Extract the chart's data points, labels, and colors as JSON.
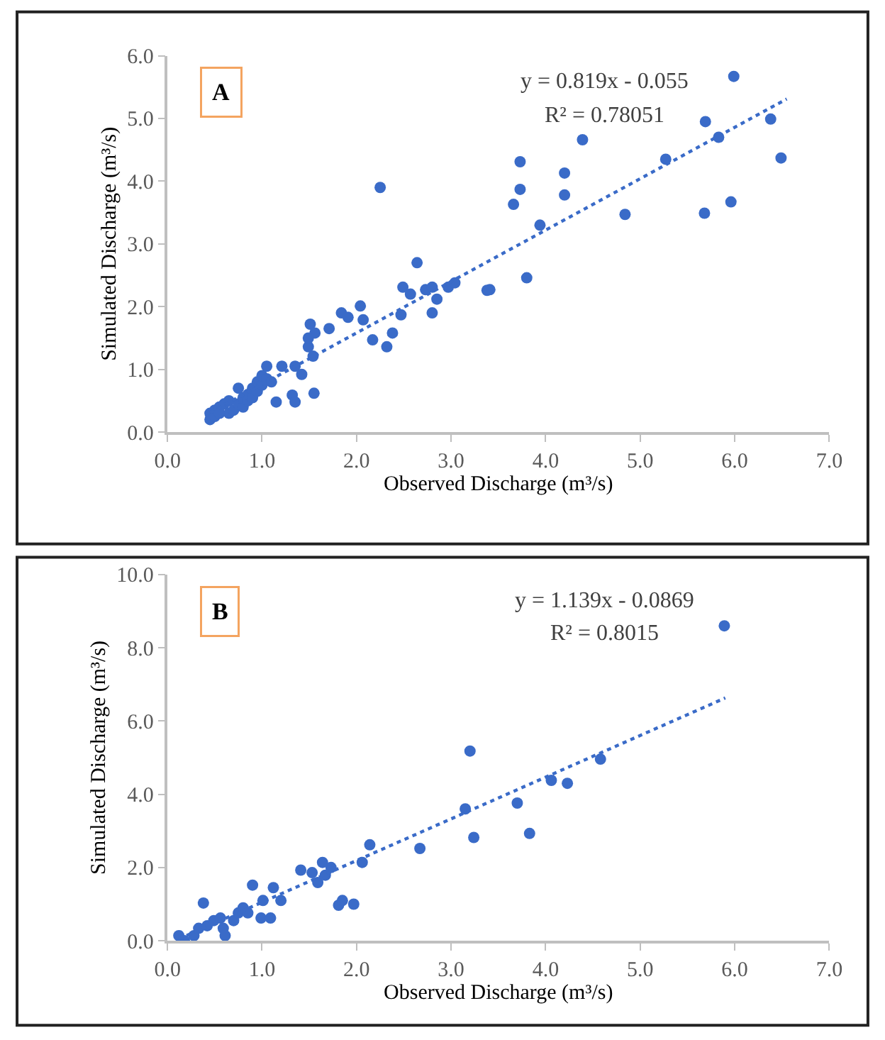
{
  "chart_data": [
    {
      "type": "scatter",
      "xlabel": "Observed Discharge (m³/s)",
      "ylabel": "Simulated Discharge (m³/s)",
      "annotations": [
        "A",
        "y = 0.819x - 0.055",
        "R² = 0.78051"
      ],
      "xlim": [
        0,
        7
      ],
      "ylim": [
        0,
        6
      ],
      "xticks": [
        {
          "value": 0,
          "label": "0.0"
        },
        {
          "value": 1,
          "label": "1.0"
        },
        {
          "value": 2,
          "label": "2.0"
        },
        {
          "value": 3,
          "label": "3.0"
        },
        {
          "value": 4,
          "label": "4.0"
        },
        {
          "value": 5,
          "label": "5.0"
        },
        {
          "value": 6,
          "label": "6.0"
        },
        {
          "value": 7,
          "label": "7.0"
        }
      ],
      "yticks": [
        {
          "value": 0,
          "label": "0.0"
        },
        {
          "value": 1,
          "label": "1.0"
        },
        {
          "value": 2,
          "label": "2.0"
        },
        {
          "value": 3,
          "label": "3.0"
        },
        {
          "value": 4,
          "label": "4.0"
        },
        {
          "value": 5,
          "label": "5.0"
        },
        {
          "value": 6,
          "label": "6.0"
        }
      ],
      "grid": false,
      "marker": "circle",
      "series": [
        {
          "color": "#3a6bc8",
          "x": [
            0.45,
            0.45,
            0.5,
            0.5,
            0.55,
            0.55,
            0.6,
            0.65,
            0.65,
            0.7,
            0.75,
            0.75,
            0.8,
            0.8,
            0.85,
            0.85,
            0.9,
            0.9,
            0.95,
            0.95,
            1.0,
            1.0,
            1.05,
            1.05,
            1.1,
            1.15,
            1.21,
            1.35,
            1.32,
            1.35,
            1.42,
            1.55,
            1.49,
            1.51,
            1.56,
            1.54,
            1.49,
            1.71,
            1.84,
            1.91,
            2.04,
            2.07,
            2.17,
            2.25,
            2.32,
            2.38,
            2.47,
            2.49,
            2.57,
            2.64,
            2.73,
            2.8,
            2.8,
            2.85,
            2.97,
            3.04,
            3.41,
            3.38,
            3.66,
            3.73,
            3.73,
            3.8,
            3.94,
            4.2,
            4.2,
            4.39,
            4.84,
            5.27,
            5.68,
            5.69,
            5.83,
            5.96,
            5.99,
            6.38,
            6.49
          ],
          "values": [
            0.3,
            0.2,
            0.35,
            0.25,
            0.4,
            0.3,
            0.45,
            0.3,
            0.5,
            0.35,
            0.45,
            0.7,
            0.4,
            0.55,
            0.5,
            0.6,
            0.55,
            0.7,
            0.65,
            0.8,
            0.75,
            0.9,
            1.05,
            0.85,
            0.8,
            0.48,
            1.05,
            1.05,
            0.59,
            0.48,
            0.92,
            0.62,
            1.36,
            1.72,
            1.58,
            1.21,
            1.5,
            1.65,
            1.9,
            1.83,
            2.01,
            1.79,
            1.47,
            3.9,
            1.36,
            1.58,
            1.87,
            2.31,
            2.2,
            2.7,
            2.27,
            2.31,
            1.9,
            2.12,
            2.31,
            2.38,
            2.27,
            2.26,
            3.63,
            3.87,
            4.31,
            2.46,
            3.3,
            4.13,
            3.78,
            4.66,
            3.47,
            4.35,
            3.49,
            4.95,
            4.7,
            3.67,
            5.67,
            4.99,
            4.37
          ]
        },
        {
          "type": "line",
          "color": "#3a6bc8",
          "line_style": "dotted",
          "marker": "none",
          "x": [
            0.45,
            6.55
          ],
          "values": [
            0.31,
            5.31
          ]
        }
      ]
    },
    {
      "type": "scatter",
      "xlabel": "Observed Discharge (m³/s)",
      "ylabel": "Simulated Discharge (m³/s)",
      "annotations": [
        "B",
        "y = 1.139x - 0.0869",
        "R² = 0.8015"
      ],
      "xlim": [
        0,
        7
      ],
      "ylim": [
        0,
        10
      ],
      "xticks": [
        {
          "value": 0,
          "label": "0.0"
        },
        {
          "value": 1,
          "label": "1.0"
        },
        {
          "value": 2,
          "label": "2.0"
        },
        {
          "value": 3,
          "label": "3.0"
        },
        {
          "value": 4,
          "label": "4.0"
        },
        {
          "value": 5,
          "label": "5.0"
        },
        {
          "value": 6,
          "label": "6.0"
        },
        {
          "value": 7,
          "label": "7.0"
        }
      ],
      "yticks": [
        {
          "value": 0,
          "label": "0.0"
        },
        {
          "value": 2,
          "label": "2.0"
        },
        {
          "value": 4,
          "label": "4.0"
        },
        {
          "value": 6,
          "label": "6.0"
        },
        {
          "value": 8,
          "label": "8.0"
        },
        {
          "value": 10,
          "label": "10.0"
        }
      ],
      "grid": false,
      "marker": "circle",
      "series": [
        {
          "color": "#3a6bc8",
          "x": [
            0.12,
            0.18,
            0.28,
            0.38,
            0.33,
            0.42,
            0.49,
            0.56,
            0.61,
            0.59,
            0.7,
            0.75,
            0.8,
            0.85,
            0.9,
            0.99,
            1.01,
            1.09,
            1.12,
            1.2,
            1.41,
            1.53,
            1.59,
            1.64,
            1.67,
            1.73,
            1.81,
            1.85,
            1.97,
            2.06,
            2.14,
            2.67,
            3.15,
            3.2,
            3.24,
            3.7,
            3.83,
            4.06,
            4.23,
            4.58,
            5.89
          ],
          "values": [
            0.14,
            0.0,
            0.14,
            1.03,
            0.34,
            0.41,
            0.55,
            0.62,
            0.14,
            0.34,
            0.55,
            0.76,
            0.9,
            0.76,
            1.52,
            0.62,
            1.1,
            0.62,
            1.45,
            1.1,
            1.93,
            1.86,
            1.59,
            2.14,
            1.79,
            2.0,
            0.97,
            1.1,
            1.0,
            2.14,
            2.62,
            2.52,
            3.6,
            5.18,
            2.82,
            3.76,
            2.93,
            4.38,
            4.3,
            4.96,
            8.6
          ]
        },
        {
          "type": "line",
          "color": "#3a6bc8",
          "line_style": "dotted",
          "marker": "none",
          "x": [
            0.12,
            5.9
          ],
          "values": [
            0.05,
            6.63
          ]
        }
      ]
    }
  ]
}
